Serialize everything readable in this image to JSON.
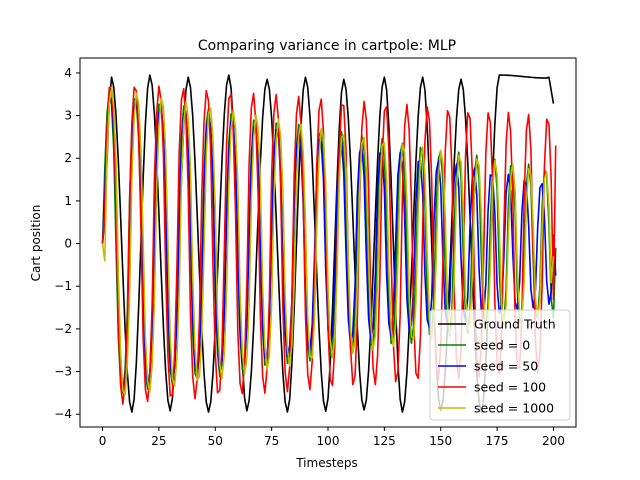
{
  "chart_data": {
    "type": "line",
    "title": "Comparing variance in cartpole: MLP",
    "xlabel": "Timesteps",
    "ylabel": "Cart position",
    "xlim": [
      -10,
      210
    ],
    "ylim": [
      -4.3,
      4.35
    ],
    "xticks": [
      0,
      25,
      50,
      75,
      100,
      125,
      150,
      175,
      200
    ],
    "yticks": [
      -4,
      -3,
      -2,
      -1,
      0,
      1,
      2,
      3,
      4
    ],
    "grid": false,
    "legend_position": "lower-right",
    "series": [
      {
        "name": "Ground Truth",
        "color": "#000000",
        "amplitude": 3.92,
        "period": 17.2,
        "amplitude_end": 3.92,
        "period_end": 17.2,
        "length": 201,
        "end_values": [
          3.9,
          3.28
        ],
        "x_end": 200,
        "peaks": [
          [
            4,
            3.9
          ],
          [
            21,
            3.95
          ],
          [
            38,
            3.9
          ],
          [
            56,
            3.95
          ],
          [
            73,
            3.85
          ],
          [
            90,
            3.9
          ],
          [
            107,
            3.85
          ],
          [
            125,
            3.9
          ],
          [
            142,
            3.9
          ],
          [
            159,
            3.85
          ],
          [
            176,
            3.95
          ],
          [
            197,
            3.88
          ]
        ],
        "troughs": [
          [
            13,
            -3.95
          ],
          [
            30,
            -3.92
          ],
          [
            47,
            -3.95
          ],
          [
            64,
            -3.92
          ],
          [
            82,
            -3.95
          ],
          [
            99,
            -3.93
          ],
          [
            116,
            -3.9
          ],
          [
            133,
            -3.95
          ],
          [
            150,
            -3.92
          ],
          [
            168,
            -3.95
          ]
        ]
      },
      {
        "name": "seed = 0",
        "color": "#008000",
        "amplitude": 3.6,
        "period": 11.5,
        "amplitude_end": 1.75,
        "period_end": 7.2,
        "x_end": 201,
        "end_value": -0.1
      },
      {
        "name": "seed = 50",
        "color": "#0000ff",
        "amplitude": 3.55,
        "period": 11.5,
        "amplitude_end": 1.4,
        "period_end": 7.0,
        "x_end": 201,
        "end_value": -0.75
      },
      {
        "name": "seed = 100",
        "color": "#ff0000",
        "amplitude": 3.8,
        "period": 11.0,
        "amplitude_end": 3.0,
        "period_end": 8.5,
        "x_end": 201,
        "end_value": 2.3
      },
      {
        "name": "seed = 1000",
        "color": "#bfbf00",
        "amplitude": 3.7,
        "period": 11.5,
        "amplitude_end": 1.7,
        "period_end": 7.2,
        "x_end": 200,
        "end_value": -0.3
      }
    ]
  }
}
